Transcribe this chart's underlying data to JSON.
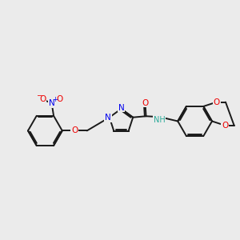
{
  "bg_color": "#ebebeb",
  "bond_color": "#1a1a1a",
  "bond_width": 1.4,
  "dbo": 0.055,
  "N_color": "#0000ee",
  "O_color": "#ee0000",
  "H_color": "#2aaa99",
  "figsize": [
    3.0,
    3.0
  ],
  "dpi": 100,
  "xlim": [
    0.0,
    10.0
  ],
  "ylim": [
    2.5,
    7.5
  ]
}
